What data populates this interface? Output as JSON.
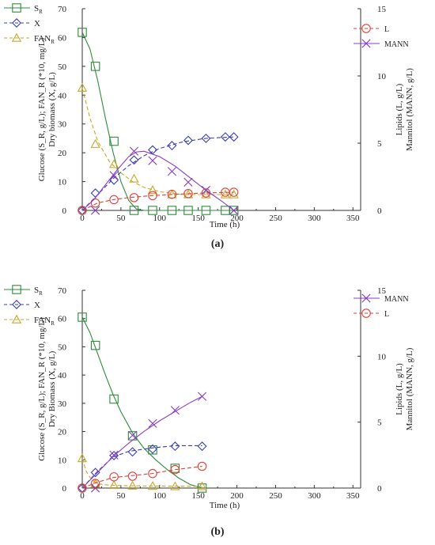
{
  "chart_data": [
    {
      "type": "line",
      "panel_label": "(a)",
      "xlabel": "Time (h)",
      "ylabel_left": "Glucose (S_R, g/L); FAN_R (*10, mg/L) Dry biomass (X, g/L)",
      "ylabel_right": "Lipids (L, g/L) Mannitol (MANN, g/L)",
      "xlim": [
        0,
        360
      ],
      "ylim_left": [
        0,
        70
      ],
      "ylim_right": [
        0,
        15
      ],
      "x_ticks": [
        0,
        50,
        100,
        150,
        200,
        250,
        300,
        350
      ],
      "y_left_ticks": [
        0,
        10,
        20,
        30,
        40,
        50,
        60,
        70
      ],
      "y_right_ticks": [
        0,
        5,
        10,
        15
      ],
      "legend_left": [
        "S_R",
        "X",
        "FAN_R"
      ],
      "legend_right": [
        "L",
        "MANN"
      ],
      "series": [
        {
          "name": "S_R",
          "axis": "left",
          "color": "#2e8b3c",
          "marker": "square",
          "dash": "solid",
          "x": [
            0,
            17,
            41,
            67,
            91,
            116,
            137,
            160,
            185,
            196
          ],
          "y": [
            61.8,
            50,
            24,
            0,
            0,
            0,
            0,
            0,
            0,
            0
          ],
          "curve_x": [
            0,
            10,
            20,
            30,
            40,
            50,
            60,
            70,
            80,
            196
          ],
          "curve_y": [
            61.8,
            56,
            45,
            32,
            20,
            10,
            3.5,
            0.5,
            0,
            0
          ]
        },
        {
          "name": "X",
          "axis": "left",
          "color": "#3b3fb4",
          "marker": "diamond",
          "dash": "dashed",
          "x": [
            0,
            17,
            41,
            67,
            91,
            116,
            137,
            160,
            185,
            196
          ],
          "y": [
            0,
            6,
            10.5,
            17.5,
            21,
            22.5,
            24.3,
            25,
            25.5,
            25.5
          ],
          "curve_x": [
            0,
            20,
            40,
            60,
            80,
            100,
            130,
            160,
            196
          ],
          "curve_y": [
            0,
            5.5,
            11,
            15.5,
            19,
            21.5,
            23.8,
            25,
            25.5
          ]
        },
        {
          "name": "FAN_R",
          "axis": "left",
          "color": "#c8a82a",
          "marker": "triangle",
          "dash": "dashed",
          "x": [
            0,
            17,
            41,
            67,
            91,
            116,
            137,
            160,
            185,
            196
          ],
          "y": [
            42.5,
            23,
            16,
            11,
            7,
            5.5,
            5.5,
            5.5,
            5.5,
            5.5
          ],
          "curve_x": [
            0,
            10,
            20,
            35,
            50,
            65,
            80,
            100,
            130,
            196
          ],
          "curve_y": [
            42.5,
            32,
            24,
            17,
            13,
            10,
            8,
            6.5,
            5.5,
            5.5
          ]
        },
        {
          "name": "L",
          "axis": "right",
          "color": "#e0403a",
          "marker": "circle",
          "dash": "dashed",
          "x": [
            0,
            17,
            41,
            67,
            91,
            116,
            137,
            160,
            185,
            196
          ],
          "y": [
            0,
            0.55,
            0.8,
            0.95,
            1.1,
            1.2,
            1.25,
            1.3,
            1.35,
            1.35
          ],
          "curve_x": [
            0,
            20,
            40,
            60,
            90,
            120,
            160,
            196
          ],
          "curve_y": [
            0,
            0.55,
            0.8,
            0.95,
            1.1,
            1.2,
            1.3,
            1.35
          ]
        },
        {
          "name": "MANN",
          "axis": "right",
          "color": "#8a3cc4",
          "marker": "x",
          "dash": "solid",
          "x": [
            17,
            41,
            67,
            91,
            116,
            137,
            160,
            196
          ],
          "y": [
            0,
            2.6,
            4.4,
            3.7,
            2.9,
            2.1,
            1.5,
            0
          ],
          "curve_x": [
            0,
            15,
            30,
            45,
            60,
            70,
            80,
            100,
            120,
            140,
            160,
            180,
            196
          ],
          "curve_y": [
            0,
            0.8,
            1.9,
            3.0,
            4.0,
            4.35,
            4.4,
            4.0,
            3.3,
            2.4,
            1.5,
            0.7,
            0
          ]
        }
      ]
    },
    {
      "type": "line",
      "panel_label": "(b)",
      "xlabel": "Time (h)",
      "ylabel_left": "Glucose (S_R, g/L); FAN_R (*10, mg/L) Dry Biomass (X, g/L)",
      "ylabel_right": "Lipids (L, g/L) Mannitol (MANN, g/L)",
      "xlim": [
        0,
        360
      ],
      "ylim_left": [
        0,
        70
      ],
      "ylim_right": [
        0,
        15
      ],
      "x_ticks": [
        0,
        50,
        100,
        150,
        200,
        250,
        300,
        350
      ],
      "y_left_ticks": [
        0,
        10,
        20,
        30,
        40,
        50,
        60,
        70
      ],
      "y_right_ticks": [
        0,
        5,
        10,
        15
      ],
      "legend_left": [
        "S_R",
        "X",
        "FAN_R"
      ],
      "legend_right": [
        "MANN",
        "L"
      ],
      "series": [
        {
          "name": "S_R",
          "axis": "left",
          "color": "#2e8b3c",
          "marker": "square",
          "dash": "solid",
          "x": [
            0,
            17,
            41,
            65,
            91,
            120,
            155
          ],
          "y": [
            60.5,
            50.5,
            31.5,
            18.5,
            13.5,
            7,
            0
          ],
          "curve_x": [
            0,
            10,
            20,
            30,
            40,
            50,
            65,
            80,
            95,
            110,
            125,
            140,
            155
          ],
          "curve_y": [
            60.5,
            55,
            47.5,
            40,
            33,
            27,
            19.5,
            14,
            10,
            6.5,
            3.5,
            1.2,
            0
          ]
        },
        {
          "name": "X",
          "axis": "left",
          "color": "#3b3fb4",
          "marker": "diamond",
          "dash": "dashed",
          "x": [
            0,
            17,
            41,
            65,
            91,
            120,
            155
          ],
          "y": [
            0,
            5.5,
            11.5,
            12.8,
            13.8,
            14.8,
            14.8
          ],
          "curve_x": [
            0,
            20,
            40,
            60,
            90,
            120,
            155
          ],
          "curve_y": [
            0,
            6,
            11,
            13,
            14.2,
            15,
            15
          ]
        },
        {
          "name": "FAN_R",
          "axis": "left",
          "color": "#c8a82a",
          "marker": "triangle",
          "dash": "dashed",
          "x": [
            0,
            17,
            41,
            65,
            91,
            120,
            155
          ],
          "y": [
            10.5,
            1.5,
            1,
            0.8,
            0.7,
            0.6,
            0.6
          ],
          "curve_x": [
            0,
            5,
            12,
            20,
            35,
            60,
            155
          ],
          "curve_y": [
            10.5,
            6,
            3,
            1.5,
            1,
            0.8,
            0.6
          ]
        },
        {
          "name": "MANN",
          "axis": "right",
          "color": "#8a3cc4",
          "marker": "x",
          "dash": "solid",
          "x": [
            17,
            41,
            65,
            91,
            120,
            155
          ],
          "y": [
            0,
            2.5,
            4.0,
            4.9,
            5.9,
            6.95
          ],
          "curve_x": [
            0,
            20,
            40,
            60,
            80,
            100,
            120,
            140,
            155
          ],
          "curve_y": [
            0,
            1.2,
            2.4,
            3.4,
            4.3,
            5.1,
            5.8,
            6.5,
            6.95
          ]
        },
        {
          "name": "L",
          "axis": "right",
          "color": "#e0403a",
          "marker": "circle",
          "dash": "dashed",
          "x": [
            0,
            17,
            41,
            65,
            91,
            120,
            155
          ],
          "y": [
            0,
            0.35,
            0.85,
            0.9,
            1.1,
            1.4,
            1.65
          ],
          "curve_x": [
            0,
            20,
            40,
            65,
            90,
            120,
            155
          ],
          "curve_y": [
            0,
            0.45,
            0.8,
            0.95,
            1.1,
            1.4,
            1.65
          ]
        }
      ]
    }
  ]
}
